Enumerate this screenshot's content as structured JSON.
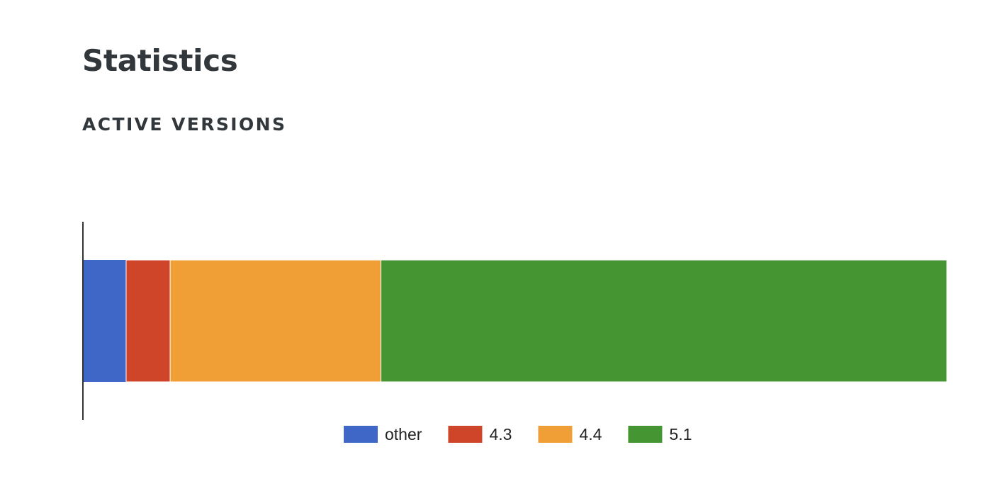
{
  "page": {
    "title": "Statistics",
    "section_title": "ACTIVE VERSIONS"
  },
  "chart_data": {
    "type": "bar",
    "orientation": "horizontal",
    "stacked": true,
    "normalized": true,
    "categories": [
      ""
    ],
    "series": [
      {
        "name": "other",
        "values": [
          5.0
        ],
        "color": "#3f67c8"
      },
      {
        "name": "4.3",
        "values": [
          5.1
        ],
        "color": "#cf4529"
      },
      {
        "name": "4.4",
        "values": [
          24.4
        ],
        "color": "#f09f36"
      },
      {
        "name": "5.1",
        "values": [
          65.5
        ],
        "color": "#459632"
      }
    ],
    "xlim": [
      0,
      100
    ],
    "grid": false,
    "legend_position": "bottom"
  }
}
